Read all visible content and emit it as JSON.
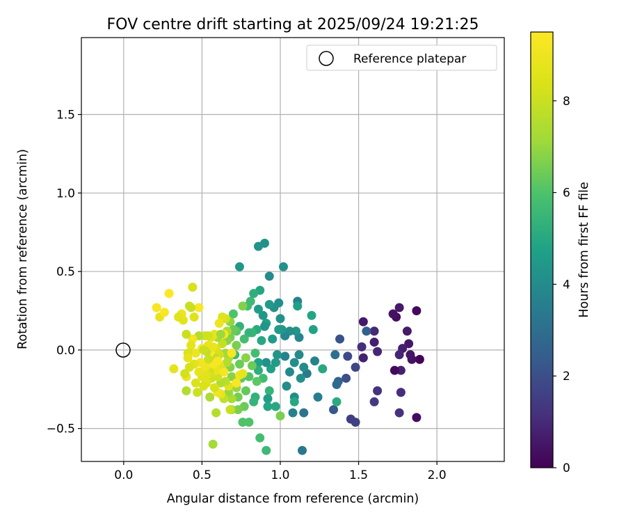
{
  "chart_data": {
    "type": "scatter",
    "title": "FOV centre drift starting at 2025/09/24 19:21:25",
    "xlabel": "Angular distance from reference (arcmin)",
    "ylabel": "Rotation from reference (arcmin)",
    "xlim": [
      -0.27,
      2.43
    ],
    "ylim": [
      -0.71,
      1.99
    ],
    "xticks": [
      0.0,
      0.5,
      1.0,
      1.5,
      2.0
    ],
    "xtick_labels": [
      "0.0",
      "0.5",
      "1.0",
      "1.5",
      "2.0"
    ],
    "yticks": [
      -0.5,
      0.0,
      0.5,
      1.0,
      1.5
    ],
    "ytick_labels": [
      "−0.5",
      "0.0",
      "0.5",
      "1.0",
      "1.5"
    ],
    "grid": true,
    "legend": {
      "position": "top-right",
      "entries": [
        "Reference platepar"
      ]
    },
    "reference_point": {
      "x": 0.0,
      "y": 0.0,
      "label": "Reference platepar"
    },
    "colorbar": {
      "label": "Hours from first FF file",
      "colormap": "viridis",
      "range": [
        0,
        9.5
      ],
      "ticks": [
        0,
        2,
        4,
        6,
        8
      ],
      "tick_labels": [
        "0",
        "2",
        "4",
        "6",
        "8"
      ]
    },
    "points": [
      {
        "x": 1.89,
        "y": -0.06,
        "h": 0.1
      },
      {
        "x": 1.87,
        "y": 0.25,
        "h": 0.2
      },
      {
        "x": 1.87,
        "y": -0.43,
        "h": 0.3
      },
      {
        "x": 1.84,
        "y": -0.06,
        "h": 0.4
      },
      {
        "x": 1.83,
        "y": -0.03,
        "h": 0.5
      },
      {
        "x": 1.82,
        "y": 0.04,
        "h": 0.55
      },
      {
        "x": 1.81,
        "y": 0.12,
        "h": 0.6
      },
      {
        "x": 1.78,
        "y": 0.01,
        "h": 0.7
      },
      {
        "x": 1.77,
        "y": -0.13,
        "h": 0.8
      },
      {
        "x": 1.76,
        "y": 0.27,
        "h": 0.6
      },
      {
        "x": 1.74,
        "y": 0.21,
        "h": 0.3
      },
      {
        "x": 1.73,
        "y": -0.13,
        "h": 0.2
      },
      {
        "x": 1.72,
        "y": 0.23,
        "h": 0.4
      },
      {
        "x": 1.76,
        "y": -0.03,
        "h": 0.9
      },
      {
        "x": 1.77,
        "y": -0.27,
        "h": 1.1
      },
      {
        "x": 1.76,
        "y": -0.4,
        "h": 1.2
      },
      {
        "x": 1.62,
        "y": -0.01,
        "h": 0.9
      },
      {
        "x": 1.6,
        "y": 0.05,
        "h": 0.7
      },
      {
        "x": 1.6,
        "y": 0.12,
        "h": 1.0
      },
      {
        "x": 1.62,
        "y": -0.26,
        "h": 1.2
      },
      {
        "x": 1.6,
        "y": -0.33,
        "h": 1.4
      },
      {
        "x": 1.53,
        "y": 0.18,
        "h": 0.6
      },
      {
        "x": 1.53,
        "y": -0.05,
        "h": 0.8
      },
      {
        "x": 1.52,
        "y": 0.02,
        "h": 1.1
      },
      {
        "x": 1.55,
        "y": 0.12,
        "h": 2.5
      },
      {
        "x": 1.48,
        "y": -0.11,
        "h": 1.7
      },
      {
        "x": 1.48,
        "y": -0.46,
        "h": 1.6
      },
      {
        "x": 1.45,
        "y": -0.44,
        "h": 1.5
      },
      {
        "x": 1.43,
        "y": -0.04,
        "h": 1.9
      },
      {
        "x": 1.42,
        "y": -0.18,
        "h": 2.0
      },
      {
        "x": 1.38,
        "y": 0.07,
        "h": 2.1
      },
      {
        "x": 1.37,
        "y": -0.2,
        "h": 2.6
      },
      {
        "x": 1.36,
        "y": -0.22,
        "h": 2.9
      },
      {
        "x": 1.35,
        "y": -0.03,
        "h": 3.0
      },
      {
        "x": 1.34,
        "y": -0.38,
        "h": 2.3
      },
      {
        "x": 1.36,
        "y": -0.33,
        "h": 5.1
      },
      {
        "x": 1.27,
        "y": -0.12,
        "h": 5.0
      },
      {
        "x": 1.24,
        "y": -0.3,
        "h": 3.5
      },
      {
        "x": 1.22,
        "y": -0.07,
        "h": 3.7
      },
      {
        "x": 1.21,
        "y": 0.13,
        "h": 4.8
      },
      {
        "x": 1.2,
        "y": 0.22,
        "h": 4.9
      },
      {
        "x": 1.17,
        "y": -0.15,
        "h": 3.4
      },
      {
        "x": 1.15,
        "y": -0.11,
        "h": 4.0
      },
      {
        "x": 1.14,
        "y": -0.64,
        "h": 3.3
      },
      {
        "x": 1.15,
        "y": -0.4,
        "h": 3.2
      },
      {
        "x": 1.13,
        "y": -0.18,
        "h": 4.2
      },
      {
        "x": 1.12,
        "y": -0.03,
        "h": 3.9
      },
      {
        "x": 1.12,
        "y": 0.08,
        "h": 3.8
      },
      {
        "x": 1.11,
        "y": 0.31,
        "h": 3.6
      },
      {
        "x": 1.11,
        "y": 0.28,
        "h": 4.7
      },
      {
        "x": 1.1,
        "y": 0.12,
        "h": 4.3
      },
      {
        "x": 1.09,
        "y": -0.08,
        "h": 4.1
      },
      {
        "x": 1.09,
        "y": -0.3,
        "h": 4.0
      },
      {
        "x": 1.09,
        "y": -0.33,
        "h": 5.0
      },
      {
        "x": 1.08,
        "y": -0.4,
        "h": 3.6
      },
      {
        "x": 1.06,
        "y": 0.12,
        "h": 4.1
      },
      {
        "x": 1.06,
        "y": -0.14,
        "h": 3.9
      },
      {
        "x": 1.04,
        "y": -0.23,
        "h": 4.0
      },
      {
        "x": 1.03,
        "y": 0.09,
        "h": 3.8
      },
      {
        "x": 1.03,
        "y": -0.04,
        "h": 3.7
      },
      {
        "x": 1.02,
        "y": 0.53,
        "h": 4.2
      },
      {
        "x": 1.01,
        "y": 0.13,
        "h": 4.4
      },
      {
        "x": 1.0,
        "y": 0.2,
        "h": 4.2
      },
      {
        "x": 1.0,
        "y": -0.42,
        "h": 6.6
      },
      {
        "x": 0.99,
        "y": 0.3,
        "h": 4.1
      },
      {
        "x": 0.99,
        "y": 0.13,
        "h": 4.5
      },
      {
        "x": 0.98,
        "y": -0.03,
        "h": 4.3
      },
      {
        "x": 0.97,
        "y": -0.08,
        "h": 4.5
      },
      {
        "x": 0.97,
        "y": -0.36,
        "h": 5.0
      },
      {
        "x": 0.96,
        "y": 0.27,
        "h": 4.2
      },
      {
        "x": 0.95,
        "y": 0.07,
        "h": 4.5
      },
      {
        "x": 0.94,
        "y": -0.12,
        "h": 4.7
      },
      {
        "x": 0.93,
        "y": 0.47,
        "h": 4.0
      },
      {
        "x": 0.93,
        "y": 0.29,
        "h": 4.5
      },
      {
        "x": 0.93,
        "y": -0.26,
        "h": 5.4
      },
      {
        "x": 0.92,
        "y": -0.31,
        "h": 4.6
      },
      {
        "x": 0.92,
        "y": -0.36,
        "h": 4.9
      },
      {
        "x": 0.91,
        "y": 0.17,
        "h": 4.7
      },
      {
        "x": 0.91,
        "y": -0.08,
        "h": 4.2
      },
      {
        "x": 0.91,
        "y": -0.64,
        "h": 5.6
      },
      {
        "x": 0.9,
        "y": 0.68,
        "h": 4.2
      },
      {
        "x": 0.9,
        "y": 0.15,
        "h": 4.3
      },
      {
        "x": 0.89,
        "y": 0.22,
        "h": 4.4
      },
      {
        "x": 0.89,
        "y": -0.18,
        "h": 5.7
      },
      {
        "x": 0.88,
        "y": 0.06,
        "h": 5.0
      },
      {
        "x": 0.87,
        "y": 0.38,
        "h": 4.9
      },
      {
        "x": 0.87,
        "y": -0.56,
        "h": 5.8
      },
      {
        "x": 0.86,
        "y": 0.66,
        "h": 4.3
      },
      {
        "x": 0.86,
        "y": 0.26,
        "h": 4.6
      },
      {
        "x": 0.86,
        "y": -0.08,
        "h": 4.8
      },
      {
        "x": 0.86,
        "y": -0.13,
        "h": 5.2
      },
      {
        "x": 0.85,
        "y": 0.13,
        "h": 5.1
      },
      {
        "x": 0.85,
        "y": -0.2,
        "h": 6.2
      },
      {
        "x": 0.84,
        "y": -0.02,
        "h": 5.8
      },
      {
        "x": 0.84,
        "y": -0.3,
        "h": 5.3
      },
      {
        "x": 0.83,
        "y": 0.36,
        "h": 5.2
      },
      {
        "x": 0.83,
        "y": -0.33,
        "h": 5.4
      },
      {
        "x": 0.82,
        "y": 0.11,
        "h": 5.5
      },
      {
        "x": 0.82,
        "y": -0.1,
        "h": 6.4
      },
      {
        "x": 0.81,
        "y": 0.31,
        "h": 5.6
      },
      {
        "x": 0.8,
        "y": 0.11,
        "h": 5.4
      },
      {
        "x": 0.8,
        "y": -0.17,
        "h": 6.1
      },
      {
        "x": 0.8,
        "y": -0.46,
        "h": 6.0
      },
      {
        "x": 0.79,
        "y": 0.28,
        "h": 5.7
      },
      {
        "x": 0.78,
        "y": -0.05,
        "h": 6.8
      },
      {
        "x": 0.78,
        "y": -0.26,
        "h": 6.3
      },
      {
        "x": 0.77,
        "y": 0.07,
        "h": 5.8
      },
      {
        "x": 0.77,
        "y": -0.36,
        "h": 6.4
      },
      {
        "x": 0.76,
        "y": 0.28,
        "h": 6.7
      },
      {
        "x": 0.76,
        "y": -0.46,
        "h": 6.0
      },
      {
        "x": 0.75,
        "y": -0.18,
        "h": 6.2
      },
      {
        "x": 0.74,
        "y": 0.53,
        "h": 4.4
      },
      {
        "x": 0.74,
        "y": 0.15,
        "h": 5.3
      },
      {
        "x": 0.74,
        "y": -0.09,
        "h": 6.4
      },
      {
        "x": 0.73,
        "y": -0.3,
        "h": 6.5
      },
      {
        "x": 0.73,
        "y": -0.38,
        "h": 6.6
      },
      {
        "x": 0.72,
        "y": 0.12,
        "h": 6.2
      },
      {
        "x": 0.72,
        "y": 0.03,
        "h": 6.6
      },
      {
        "x": 0.72,
        "y": -0.24,
        "h": 7.0
      },
      {
        "x": 0.71,
        "y": -0.03,
        "h": 5.6
      },
      {
        "x": 0.7,
        "y": 0.23,
        "h": 6.0
      },
      {
        "x": 0.7,
        "y": 0.13,
        "h": 6.4
      },
      {
        "x": 0.69,
        "y": -0.17,
        "h": 6.8
      },
      {
        "x": 0.69,
        "y": -0.38,
        "h": 6.9
      },
      {
        "x": 0.69,
        "y": -0.31,
        "h": 7.3
      },
      {
        "x": 0.68,
        "y": 0.18,
        "h": 6.9
      },
      {
        "x": 0.68,
        "y": 0.08,
        "h": 6.6
      },
      {
        "x": 0.68,
        "y": -0.11,
        "h": 6.7
      },
      {
        "x": 0.68,
        "y": -0.38,
        "h": 8.0
      },
      {
        "x": 0.67,
        "y": -0.05,
        "h": 7.4
      },
      {
        "x": 0.67,
        "y": -0.27,
        "h": 7.0
      },
      {
        "x": 0.67,
        "y": -0.23,
        "h": 8.6
      },
      {
        "x": 0.66,
        "y": 0.12,
        "h": 7.4
      },
      {
        "x": 0.66,
        "y": 0.06,
        "h": 6.8
      },
      {
        "x": 0.66,
        "y": -0.08,
        "h": 7.5
      },
      {
        "x": 0.65,
        "y": 0.2,
        "h": 8.3
      },
      {
        "x": 0.65,
        "y": -0.02,
        "h": 7.2
      },
      {
        "x": 0.65,
        "y": -0.2,
        "h": 7.7
      },
      {
        "x": 0.64,
        "y": 0.1,
        "h": 9.2
      },
      {
        "x": 0.64,
        "y": -0.31,
        "h": 7.8
      },
      {
        "x": 0.63,
        "y": 0.21,
        "h": 8.5
      },
      {
        "x": 0.63,
        "y": 0.04,
        "h": 7.9
      },
      {
        "x": 0.63,
        "y": -0.13,
        "h": 8.0
      },
      {
        "x": 0.62,
        "y": -0.21,
        "h": 7.5
      },
      {
        "x": 0.62,
        "y": -0.28,
        "h": 8.7
      },
      {
        "x": 0.61,
        "y": 0.17,
        "h": 9.0
      },
      {
        "x": 0.61,
        "y": -0.03,
        "h": 8.2
      },
      {
        "x": 0.61,
        "y": -0.09,
        "h": 8.6
      },
      {
        "x": 0.6,
        "y": 0.08,
        "h": 7.3
      },
      {
        "x": 0.6,
        "y": -0.17,
        "h": 8.1
      },
      {
        "x": 0.6,
        "y": -0.27,
        "h": 9.1
      },
      {
        "x": 0.59,
        "y": 0.01,
        "h": 8.4
      },
      {
        "x": 0.59,
        "y": -0.13,
        "h": 8.9
      },
      {
        "x": 0.59,
        "y": -0.4,
        "h": 7.6
      },
      {
        "x": 0.58,
        "y": 0.1,
        "h": 8.8
      },
      {
        "x": 0.58,
        "y": -0.05,
        "h": 7.7
      },
      {
        "x": 0.58,
        "y": -0.24,
        "h": 8.3
      },
      {
        "x": 0.57,
        "y": -0.6,
        "h": 7.2
      },
      {
        "x": 0.57,
        "y": -0.09,
        "h": 9.3
      },
      {
        "x": 0.56,
        "y": -0.18,
        "h": 8.1
      },
      {
        "x": 0.56,
        "y": 0.08,
        "h": 8.7
      },
      {
        "x": 0.55,
        "y": -0.02,
        "h": 9.4
      },
      {
        "x": 0.55,
        "y": -0.14,
        "h": 8.2
      },
      {
        "x": 0.55,
        "y": -0.3,
        "h": 7.4
      },
      {
        "x": 0.54,
        "y": 0.03,
        "h": 8.9
      },
      {
        "x": 0.54,
        "y": -0.06,
        "h": 8.0
      },
      {
        "x": 0.53,
        "y": -0.21,
        "h": 8.5
      },
      {
        "x": 0.53,
        "y": -0.01,
        "h": 7.8
      },
      {
        "x": 0.52,
        "y": 0.09,
        "h": 8.2
      },
      {
        "x": 0.52,
        "y": -0.11,
        "h": 9.0
      },
      {
        "x": 0.51,
        "y": -0.23,
        "h": 8.4
      },
      {
        "x": 0.5,
        "y": 0.01,
        "h": 9.2
      },
      {
        "x": 0.5,
        "y": -0.17,
        "h": 8.6
      },
      {
        "x": 0.49,
        "y": -0.08,
        "h": 9.1
      },
      {
        "x": 0.48,
        "y": 0.27,
        "h": 9.4
      },
      {
        "x": 0.48,
        "y": 0.09,
        "h": 7.6
      },
      {
        "x": 0.48,
        "y": -0.14,
        "h": 8.8
      },
      {
        "x": 0.47,
        "y": -0.27,
        "h": 8.1
      },
      {
        "x": 0.46,
        "y": -0.02,
        "h": 9.0
      },
      {
        "x": 0.46,
        "y": -0.21,
        "h": 8.4
      },
      {
        "x": 0.45,
        "y": 0.21,
        "h": 8.5
      },
      {
        "x": 0.45,
        "y": -0.09,
        "h": 8.6
      },
      {
        "x": 0.44,
        "y": 0.4,
        "h": 8.3
      },
      {
        "x": 0.44,
        "y": 0.07,
        "h": 9.2
      },
      {
        "x": 0.43,
        "y": 0.27,
        "h": 7.9
      },
      {
        "x": 0.43,
        "y": 0.03,
        "h": 8.7
      },
      {
        "x": 0.42,
        "y": -0.11,
        "h": 8.3
      },
      {
        "x": 0.42,
        "y": 0.28,
        "h": 8.0
      },
      {
        "x": 0.41,
        "y": -0.02,
        "h": 8.4
      },
      {
        "x": 0.41,
        "y": -0.05,
        "h": 8.8
      },
      {
        "x": 0.4,
        "y": 0.1,
        "h": 8.0
      },
      {
        "x": 0.4,
        "y": -0.17,
        "h": 8.9
      },
      {
        "x": 0.4,
        "y": -0.26,
        "h": 7.5
      },
      {
        "x": 0.39,
        "y": -0.15,
        "h": 8.2
      },
      {
        "x": 0.38,
        "y": 0.19,
        "h": 8.7
      },
      {
        "x": 0.37,
        "y": 0.23,
        "h": 9.0
      },
      {
        "x": 0.35,
        "y": 0.21,
        "h": 8.6
      },
      {
        "x": 0.32,
        "y": -0.12,
        "h": 8.7
      },
      {
        "x": 0.29,
        "y": 0.36,
        "h": 9.5
      },
      {
        "x": 0.23,
        "y": 0.21,
        "h": 8.9
      },
      {
        "x": 0.21,
        "y": 0.27,
        "h": 9.3
      },
      {
        "x": 0.26,
        "y": 0.24,
        "h": 9.4
      },
      {
        "x": 0.51,
        "y": 0.0,
        "h": 8.0
      },
      {
        "x": 0.53,
        "y": -0.16,
        "h": 8.6
      },
      {
        "x": 0.57,
        "y": 0.02,
        "h": 8.9
      },
      {
        "x": 0.6,
        "y": -0.07,
        "h": 9.3
      },
      {
        "x": 0.64,
        "y": -0.14,
        "h": 9.2
      },
      {
        "x": 0.69,
        "y": -0.02,
        "h": 9.3
      },
      {
        "x": 0.72,
        "y": -0.21,
        "h": 9.4
      },
      {
        "x": 0.74,
        "y": -0.16,
        "h": 9.0
      },
      {
        "x": 0.76,
        "y": -0.15,
        "h": 8.8
      },
      {
        "x": 0.62,
        "y": 0.1,
        "h": 7.1
      },
      {
        "x": 0.54,
        "y": 0.09,
        "h": 8.1
      }
    ]
  }
}
